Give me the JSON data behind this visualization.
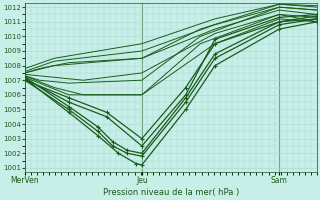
{
  "xlabel": "Pression niveau de la mer( hPa )",
  "ylim": [
    1001,
    1012
  ],
  "yticks": [
    1001,
    1002,
    1003,
    1004,
    1005,
    1006,
    1007,
    1008,
    1009,
    1010,
    1011,
    1012
  ],
  "xtick_positions": [
    0.0,
    0.4,
    0.87,
    1.0
  ],
  "xtick_labels": [
    "MerVen",
    "Jeu",
    "Sam",
    ""
  ],
  "bg_color": "#c8eee8",
  "grid_color": "#a8d8d0",
  "line_color": "#1a5c1a",
  "lines": [
    {
      "x": [
        0.0,
        0.05,
        0.15,
        0.4,
        0.6,
        0.87,
        1.0
      ],
      "y": [
        1007.2,
        1006.8,
        1006.0,
        1006.0,
        1009.5,
        1011.5,
        1011.0
      ],
      "marker": false,
      "lw": 0.7
    },
    {
      "x": [
        0.0,
        0.05,
        0.15,
        0.4,
        0.6,
        0.87,
        1.0
      ],
      "y": [
        1007.3,
        1007.0,
        1006.8,
        1007.0,
        1010.0,
        1012.0,
        1011.8
      ],
      "marker": false,
      "lw": 0.7
    },
    {
      "x": [
        0.0,
        0.05,
        0.15,
        0.4,
        0.6,
        0.87,
        1.0
      ],
      "y": [
        1007.5,
        1007.8,
        1008.2,
        1008.5,
        1010.5,
        1012.2,
        1012.0
      ],
      "marker": false,
      "lw": 0.7
    },
    {
      "x": [
        0.0,
        0.15,
        0.28,
        0.4,
        0.55,
        0.65,
        0.87,
        1.0
      ],
      "y": [
        1007.0,
        1005.8,
        1004.8,
        1003.0,
        1006.5,
        1009.5,
        1011.0,
        1011.2
      ],
      "marker": true,
      "lw": 0.9
    },
    {
      "x": [
        0.0,
        0.15,
        0.28,
        0.4,
        0.55,
        0.65,
        0.87,
        1.0
      ],
      "y": [
        1007.1,
        1005.5,
        1004.5,
        1002.5,
        1006.0,
        1009.8,
        1011.3,
        1011.5
      ],
      "marker": true,
      "lw": 0.9
    },
    {
      "x": [
        0.0,
        0.15,
        0.25,
        0.3,
        0.35,
        0.4,
        0.55,
        0.65,
        0.87,
        1.0
      ],
      "y": [
        1007.0,
        1005.0,
        1003.5,
        1002.5,
        1002.0,
        1001.8,
        1005.5,
        1008.5,
        1010.8,
        1011.2
      ],
      "marker": true,
      "lw": 0.9
    },
    {
      "x": [
        0.0,
        0.15,
        0.25,
        0.3,
        0.35,
        0.4,
        0.55,
        0.65,
        0.87,
        1.0
      ],
      "y": [
        1007.2,
        1005.2,
        1003.8,
        1002.8,
        1002.2,
        1002.0,
        1005.8,
        1008.8,
        1011.0,
        1011.4
      ],
      "marker": true,
      "lw": 0.9
    },
    {
      "x": [
        0.0,
        0.15,
        0.25,
        0.32,
        0.38,
        0.4,
        0.55,
        0.65,
        0.87,
        1.0
      ],
      "y": [
        1007.1,
        1004.8,
        1003.2,
        1002.0,
        1001.3,
        1001.2,
        1005.0,
        1008.0,
        1010.5,
        1011.0
      ],
      "marker": true,
      "lw": 0.9
    },
    {
      "x": [
        0.0,
        0.1,
        0.2,
        0.4,
        0.65,
        0.87,
        1.0
      ],
      "y": [
        1007.3,
        1006.5,
        1006.0,
        1006.0,
        1009.5,
        1011.2,
        1011.0
      ],
      "marker": false,
      "lw": 0.7
    },
    {
      "x": [
        0.0,
        0.1,
        0.2,
        0.4,
        0.65,
        0.87,
        1.0
      ],
      "y": [
        1007.4,
        1007.2,
        1007.0,
        1007.5,
        1010.2,
        1011.5,
        1011.3
      ],
      "marker": false,
      "lw": 0.7
    },
    {
      "x": [
        0.0,
        0.1,
        0.4,
        0.65,
        0.87,
        1.0
      ],
      "y": [
        1007.5,
        1008.0,
        1008.5,
        1010.5,
        1011.8,
        1011.5
      ],
      "marker": false,
      "lw": 0.7
    },
    {
      "x": [
        0.0,
        0.1,
        0.4,
        0.65,
        0.87,
        1.0
      ],
      "y": [
        1007.6,
        1008.3,
        1009.0,
        1010.8,
        1012.0,
        1011.8
      ],
      "marker": false,
      "lw": 0.7
    },
    {
      "x": [
        0.0,
        0.1,
        0.4,
        0.65,
        0.87,
        1.0
      ],
      "y": [
        1007.8,
        1008.5,
        1009.5,
        1011.2,
        1012.2,
        1012.1
      ],
      "marker": false,
      "lw": 0.7
    }
  ]
}
